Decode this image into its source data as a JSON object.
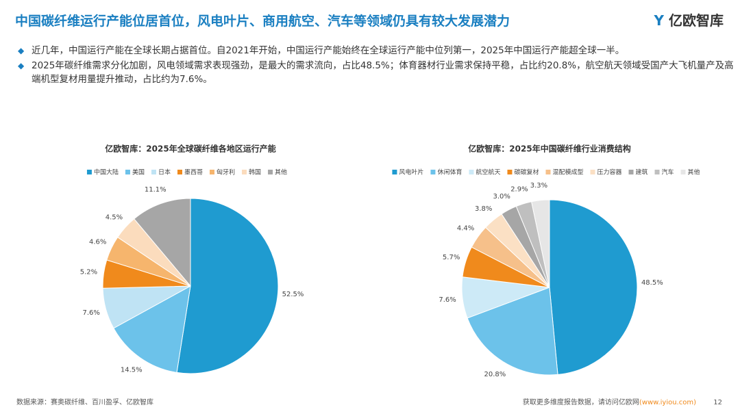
{
  "header": {
    "title": "中国碳纤维运行产能位居首位，风电叶片、商用航空、汽车等领域仍具有较大发展潜力",
    "logo": "亿欧智库"
  },
  "bullets": [
    "近几年，中国运行产能在全球长期占据首位。自2021年开始，中国运行产能始终在全球运行产能中位列第一，2025年中国运行产能超全球一半。",
    "2025年碳纤维需求分化加剧，风电领域需求表现强劲，是最大的需求流向，占比48.5%；体育器材行业需求保持平稳，占比约20.8%，航空航天领域受国产大飞机量产及高端机型复材用量提升推动，占比约为7.6%。"
  ],
  "footer": {
    "source": "数据来源：赛奥碳纤维、百川盈孚、亿欧智库",
    "more": "获取更多维度报告数据，请访问亿欧网",
    "url": "(www.iyiou.com)",
    "page": "12"
  },
  "chart_data": [
    {
      "type": "pie",
      "title": "亿欧智库：2025年全球碳纤维各地区运行产能",
      "categories": [
        "中国大陆",
        "美国",
        "日本",
        "墨西哥",
        "匈牙利",
        "韩国",
        "其他"
      ],
      "values": [
        52.5,
        14.5,
        7.6,
        5.2,
        4.6,
        4.5,
        11.1
      ],
      "value_labels": [
        "52.5%",
        "14.5%",
        "7.6%",
        "5.2%",
        "4.6%",
        "4.5%",
        "11.1%"
      ],
      "colors": [
        "#1f9bd0",
        "#6cc2ea",
        "#bfe3f4",
        "#f08a1c",
        "#f6b56d",
        "#fbdcbd",
        "#a6a6a6"
      ]
    },
    {
      "type": "pie",
      "title": "亿欧智库：2025年中国碳纤维行业消费结构",
      "categories": [
        "风电叶片",
        "休闲体育",
        "航空航天",
        "碳碳复材",
        "混配模成型",
        "压力容器",
        "建筑",
        "汽车",
        "其他"
      ],
      "values": [
        48.5,
        20.8,
        7.6,
        5.7,
        4.4,
        3.8,
        3.0,
        2.9,
        3.3
      ],
      "value_labels": [
        "48.5%",
        "20.8%",
        "7.6%",
        "5.7%",
        "4.4%",
        "3.8%",
        "3.0%",
        "2.9%",
        "3.3%"
      ],
      "colors": [
        "#1f9bd0",
        "#6cc2ea",
        "#cdeaf7",
        "#f08a1c",
        "#f6c08a",
        "#fbe0c4",
        "#a6a6a6",
        "#bfbfbf",
        "#e6e6e6"
      ]
    }
  ]
}
